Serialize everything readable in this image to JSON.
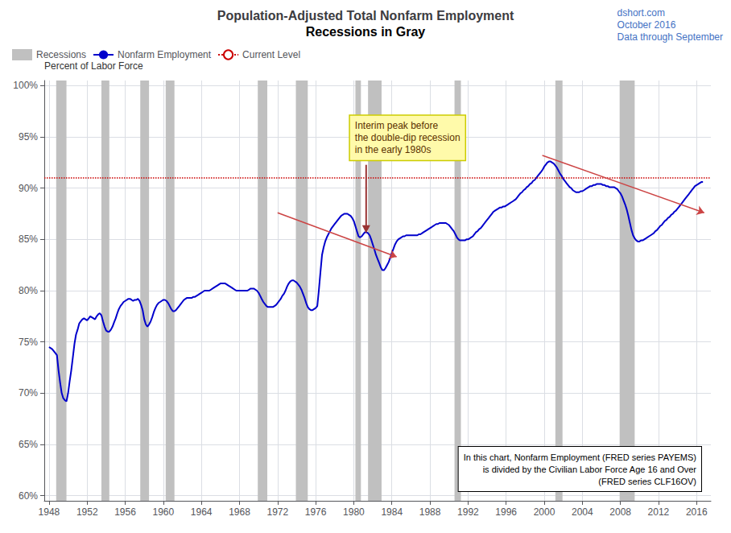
{
  "chart_data": {
    "type": "line",
    "title": "Population-Adjusted Total Nonfarm Employment",
    "subtitle": "Recessions in Gray",
    "ylabel": "Percent of Labor Force",
    "watermark": {
      "lines": [
        "dshort.com",
        "October 2016",
        "Data through September"
      ],
      "color": "#4472C4"
    },
    "background_color": "#FFFFFF",
    "grid": true,
    "legend": "upper left",
    "xlim": [
      1947.5,
      2017.5
    ],
    "xticks": [
      1948,
      1952,
      1956,
      1960,
      1964,
      1968,
      1972,
      1976,
      1980,
      1984,
      1988,
      1992,
      1996,
      2000,
      2004,
      2008,
      2012,
      2016
    ],
    "ylim": [
      0.595,
      1.005
    ],
    "yticks": [
      {
        "value": 0.6,
        "label": "60%"
      },
      {
        "value": 0.65,
        "label": "65%"
      },
      {
        "value": 0.7,
        "label": "70%"
      },
      {
        "value": 0.75,
        "label": "75%"
      },
      {
        "value": 0.8,
        "label": "80%"
      },
      {
        "value": 0.85,
        "label": "85%"
      },
      {
        "value": 0.9,
        "label": "90%"
      },
      {
        "value": 0.95,
        "label": "95%"
      },
      {
        "value": 1.0,
        "label": "100%"
      }
    ],
    "recessions": {
      "name": "Recessions",
      "color": "#C0C0C0",
      "bands": [
        [
          1948.75,
          1949.83
        ],
        [
          1953.5,
          1954.33
        ],
        [
          1957.58,
          1958.5
        ],
        [
          1960.25,
          1961.17
        ],
        [
          1969.92,
          1970.92
        ],
        [
          1973.92,
          1975.17
        ],
        [
          1980.17,
          1980.75
        ],
        [
          1981.5,
          1982.92
        ],
        [
          1990.58,
          1991.25
        ],
        [
          2001.17,
          2001.92
        ],
        [
          2007.92,
          2009.5
        ]
      ]
    },
    "current_level": {
      "name": "Current Level",
      "color": "#CC0000",
      "value": 0.906,
      "line_style": "dotted"
    },
    "trend_lines": {
      "color": "#CC4444",
      "lines": [
        [
          [
            1972.0,
            0.876
          ],
          [
            1984.5,
            0.833
          ]
        ],
        [
          [
            1999.8,
            0.932
          ],
          [
            2016.8,
            0.876
          ]
        ]
      ]
    },
    "annotations": [
      {
        "text": "Interim peak before\nthe double-dip recession\nin the early 1980s",
        "x": 1981.3,
        "y": 0.856,
        "color": "#993333"
      },
      {
        "text": "In this chart, Nonfarm Employment (FRED series PAYEMS)\nis divided by the Civilian Labor Force Age 16 and Over\n(FRED series CLF16OV)"
      }
    ],
    "x": [
      1948.0,
      1948.17,
      1948.33,
      1948.5,
      1948.67,
      1948.83,
      1949.0,
      1949.17,
      1949.33,
      1949.5,
      1949.67,
      1949.83,
      1950.0,
      1950.17,
      1950.33,
      1950.5,
      1950.67,
      1950.83,
      1951.0,
      1951.17,
      1951.33,
      1951.5,
      1951.67,
      1951.83,
      1952.0,
      1952.17,
      1952.33,
      1952.5,
      1952.67,
      1952.83,
      1953.0,
      1953.17,
      1953.33,
      1953.5,
      1953.67,
      1953.83,
      1954.0,
      1954.17,
      1954.33,
      1954.5,
      1954.67,
      1954.83,
      1955.0,
      1955.17,
      1955.33,
      1955.5,
      1955.67,
      1955.83,
      1956.0,
      1956.17,
      1956.33,
      1956.5,
      1956.67,
      1956.83,
      1957.0,
      1957.17,
      1957.33,
      1957.5,
      1957.67,
      1957.83,
      1958.0,
      1958.17,
      1958.33,
      1958.5,
      1958.67,
      1958.83,
      1959.0,
      1959.17,
      1959.33,
      1959.5,
      1959.67,
      1959.83,
      1960.0,
      1960.17,
      1960.33,
      1960.5,
      1960.67,
      1960.83,
      1961.0,
      1961.17,
      1961.33,
      1961.5,
      1961.67,
      1961.83,
      1962.0,
      1962.17,
      1962.33,
      1962.5,
      1962.67,
      1962.83,
      1963.0,
      1963.17,
      1963.33,
      1963.5,
      1963.67,
      1963.83,
      1964.0,
      1964.17,
      1964.33,
      1964.5,
      1964.67,
      1964.83,
      1965.0,
      1965.17,
      1965.33,
      1965.5,
      1965.67,
      1965.83,
      1966.0,
      1966.17,
      1966.33,
      1966.5,
      1966.67,
      1966.83,
      1967.0,
      1967.17,
      1967.33,
      1967.5,
      1967.67,
      1967.83,
      1968.0,
      1968.17,
      1968.33,
      1968.5,
      1968.67,
      1968.83,
      1969.0,
      1969.17,
      1969.33,
      1969.5,
      1969.67,
      1969.83,
      1970.0,
      1970.17,
      1970.33,
      1970.5,
      1970.67,
      1970.83,
      1971.0,
      1971.17,
      1971.33,
      1971.5,
      1971.67,
      1971.83,
      1972.0,
      1972.17,
      1972.33,
      1972.5,
      1972.67,
      1972.83,
      1973.0,
      1973.17,
      1973.33,
      1973.5,
      1973.67,
      1973.83,
      1974.0,
      1974.17,
      1974.33,
      1974.5,
      1974.67,
      1974.83,
      1975.0,
      1975.17,
      1975.33,
      1975.5,
      1975.67,
      1975.83,
      1976.0,
      1976.17,
      1976.33,
      1976.5,
      1976.67,
      1976.83,
      1977.0,
      1977.17,
      1977.33,
      1977.5,
      1977.67,
      1977.83,
      1978.0,
      1978.17,
      1978.33,
      1978.5,
      1978.67,
      1978.83,
      1979.0,
      1979.17,
      1979.33,
      1979.5,
      1979.67,
      1979.83,
      1980.0,
      1980.17,
      1980.33,
      1980.5,
      1980.67,
      1980.83,
      1981.0,
      1981.17,
      1981.33,
      1981.5,
      1981.67,
      1981.83,
      1982.0,
      1982.17,
      1982.33,
      1982.5,
      1982.67,
      1982.83,
      1983.0,
      1983.17,
      1983.33,
      1983.5,
      1983.67,
      1983.83,
      1984.0,
      1984.17,
      1984.33,
      1984.5,
      1984.67,
      1984.83,
      1985.0,
      1985.17,
      1985.33,
      1985.5,
      1985.67,
      1985.83,
      1986.0,
      1986.17,
      1986.33,
      1986.5,
      1986.67,
      1986.83,
      1987.0,
      1987.17,
      1987.33,
      1987.5,
      1987.67,
      1987.83,
      1988.0,
      1988.17,
      1988.33,
      1988.5,
      1988.67,
      1988.83,
      1989.0,
      1989.17,
      1989.33,
      1989.5,
      1989.67,
      1989.83,
      1990.0,
      1990.17,
      1990.33,
      1990.5,
      1990.67,
      1990.83,
      1991.0,
      1991.17,
      1991.33,
      1991.5,
      1991.67,
      1991.83,
      1992.0,
      1992.17,
      1992.33,
      1992.5,
      1992.67,
      1992.83,
      1993.0,
      1993.17,
      1993.33,
      1993.5,
      1993.67,
      1993.83,
      1994.0,
      1994.17,
      1994.33,
      1994.5,
      1994.67,
      1994.83,
      1995.0,
      1995.17,
      1995.33,
      1995.5,
      1995.67,
      1995.83,
      1996.0,
      1996.17,
      1996.33,
      1996.5,
      1996.67,
      1996.83,
      1997.0,
      1997.17,
      1997.33,
      1997.5,
      1997.67,
      1997.83,
      1998.0,
      1998.17,
      1998.33,
      1998.5,
      1998.67,
      1998.83,
      1999.0,
      1999.17,
      1999.33,
      1999.5,
      1999.67,
      1999.83,
      2000.0,
      2000.17,
      2000.33,
      2000.5,
      2000.67,
      2000.83,
      2001.0,
      2001.17,
      2001.33,
      2001.5,
      2001.67,
      2001.83,
      2002.0,
      2002.17,
      2002.33,
      2002.5,
      2002.67,
      2002.83,
      2003.0,
      2003.17,
      2003.33,
      2003.5,
      2003.67,
      2003.83,
      2004.0,
      2004.17,
      2004.33,
      2004.5,
      2004.67,
      2004.83,
      2005.0,
      2005.17,
      2005.33,
      2005.5,
      2005.67,
      2005.83,
      2006.0,
      2006.17,
      2006.33,
      2006.5,
      2006.67,
      2006.83,
      2007.0,
      2007.17,
      2007.33,
      2007.5,
      2007.67,
      2007.83,
      2008.0,
      2008.17,
      2008.33,
      2008.5,
      2008.67,
      2008.83,
      2009.0,
      2009.17,
      2009.33,
      2009.5,
      2009.67,
      2009.83,
      2010.0,
      2010.17,
      2010.33,
      2010.5,
      2010.67,
      2010.83,
      2011.0,
      2011.17,
      2011.33,
      2011.5,
      2011.67,
      2011.83,
      2012.0,
      2012.17,
      2012.33,
      2012.5,
      2012.67,
      2012.83,
      2013.0,
      2013.17,
      2013.33,
      2013.5,
      2013.67,
      2013.83,
      2014.0,
      2014.17,
      2014.33,
      2014.5,
      2014.67,
      2014.83,
      2015.0,
      2015.17,
      2015.33,
      2015.5,
      2015.67,
      2015.83,
      2016.0,
      2016.17,
      2016.33,
      2016.5,
      2016.67
    ],
    "series": [
      {
        "name": "Nonfarm Employment",
        "color": "#0000CC",
        "values": [
          0.745,
          0.744,
          0.743,
          0.741,
          0.739,
          0.737,
          0.722,
          0.71,
          0.7,
          0.695,
          0.693,
          0.692,
          0.7,
          0.712,
          0.722,
          0.735,
          0.748,
          0.757,
          0.762,
          0.768,
          0.77,
          0.772,
          0.773,
          0.772,
          0.771,
          0.773,
          0.775,
          0.774,
          0.773,
          0.772,
          0.775,
          0.777,
          0.778,
          0.776,
          0.77,
          0.765,
          0.761,
          0.76,
          0.76,
          0.762,
          0.765,
          0.769,
          0.773,
          0.778,
          0.782,
          0.785,
          0.787,
          0.789,
          0.79,
          0.791,
          0.792,
          0.792,
          0.791,
          0.79,
          0.791,
          0.791,
          0.792,
          0.79,
          0.786,
          0.781,
          0.772,
          0.767,
          0.765,
          0.767,
          0.77,
          0.774,
          0.779,
          0.783,
          0.786,
          0.788,
          0.789,
          0.79,
          0.791,
          0.791,
          0.79,
          0.788,
          0.785,
          0.782,
          0.78,
          0.78,
          0.781,
          0.783,
          0.785,
          0.787,
          0.789,
          0.791,
          0.792,
          0.793,
          0.793,
          0.793,
          0.793,
          0.794,
          0.794,
          0.795,
          0.796,
          0.797,
          0.798,
          0.799,
          0.8,
          0.8,
          0.8,
          0.8,
          0.801,
          0.802,
          0.803,
          0.804,
          0.805,
          0.806,
          0.807,
          0.807,
          0.807,
          0.807,
          0.806,
          0.805,
          0.804,
          0.803,
          0.802,
          0.801,
          0.8,
          0.8,
          0.8,
          0.8,
          0.8,
          0.8,
          0.8,
          0.8,
          0.801,
          0.802,
          0.802,
          0.802,
          0.801,
          0.8,
          0.798,
          0.795,
          0.792,
          0.789,
          0.787,
          0.785,
          0.784,
          0.784,
          0.784,
          0.784,
          0.785,
          0.786,
          0.788,
          0.79,
          0.792,
          0.795,
          0.797,
          0.8,
          0.804,
          0.807,
          0.809,
          0.81,
          0.81,
          0.809,
          0.808,
          0.806,
          0.804,
          0.801,
          0.797,
          0.793,
          0.788,
          0.784,
          0.782,
          0.781,
          0.781,
          0.782,
          0.783,
          0.785,
          0.8,
          0.818,
          0.835,
          0.842,
          0.848,
          0.852,
          0.855,
          0.858,
          0.861,
          0.863,
          0.865,
          0.867,
          0.869,
          0.871,
          0.873,
          0.874,
          0.875,
          0.875,
          0.875,
          0.874,
          0.873,
          0.871,
          0.868,
          0.863,
          0.858,
          0.853,
          0.852,
          0.853,
          0.855,
          0.857,
          0.857,
          0.856,
          0.854,
          0.85,
          0.845,
          0.84,
          0.835,
          0.831,
          0.827,
          0.823,
          0.82,
          0.82,
          0.822,
          0.825,
          0.828,
          0.832,
          0.837,
          0.841,
          0.845,
          0.848,
          0.85,
          0.851,
          0.852,
          0.853,
          0.853,
          0.854,
          0.854,
          0.854,
          0.854,
          0.854,
          0.854,
          0.854,
          0.854,
          0.855,
          0.855,
          0.856,
          0.857,
          0.858,
          0.859,
          0.86,
          0.861,
          0.862,
          0.863,
          0.864,
          0.865,
          0.865,
          0.866,
          0.866,
          0.866,
          0.866,
          0.866,
          0.865,
          0.864,
          0.862,
          0.86,
          0.858,
          0.855,
          0.852,
          0.85,
          0.849,
          0.849,
          0.849,
          0.849,
          0.85,
          0.85,
          0.851,
          0.852,
          0.853,
          0.855,
          0.857,
          0.858,
          0.86,
          0.861,
          0.863,
          0.865,
          0.867,
          0.869,
          0.871,
          0.873,
          0.875,
          0.877,
          0.878,
          0.879,
          0.88,
          0.881,
          0.881,
          0.882,
          0.882,
          0.883,
          0.884,
          0.885,
          0.886,
          0.887,
          0.888,
          0.889,
          0.891,
          0.893,
          0.895,
          0.896,
          0.898,
          0.899,
          0.901,
          0.902,
          0.904,
          0.905,
          0.907,
          0.908,
          0.91,
          0.912,
          0.914,
          0.916,
          0.918,
          0.921,
          0.923,
          0.925,
          0.926,
          0.926,
          0.925,
          0.924,
          0.922,
          0.92,
          0.917,
          0.914,
          0.912,
          0.909,
          0.907,
          0.905,
          0.903,
          0.901,
          0.9,
          0.898,
          0.897,
          0.896,
          0.896,
          0.896,
          0.897,
          0.897,
          0.898,
          0.899,
          0.9,
          0.901,
          0.902,
          0.902,
          0.903,
          0.903,
          0.904,
          0.904,
          0.904,
          0.904,
          0.903,
          0.903,
          0.902,
          0.902,
          0.901,
          0.901,
          0.901,
          0.901,
          0.9,
          0.899,
          0.897,
          0.895,
          0.892,
          0.888,
          0.884,
          0.879,
          0.873,
          0.866,
          0.859,
          0.854,
          0.851,
          0.849,
          0.848,
          0.848,
          0.849,
          0.849,
          0.85,
          0.851,
          0.852,
          0.853,
          0.854,
          0.855,
          0.856,
          0.858,
          0.859,
          0.861,
          0.863,
          0.864,
          0.866,
          0.868,
          0.869,
          0.871,
          0.872,
          0.874,
          0.875,
          0.877,
          0.878,
          0.88,
          0.882,
          0.884,
          0.886,
          0.888,
          0.89,
          0.892,
          0.894,
          0.896,
          0.898,
          0.9,
          0.902,
          0.903,
          0.904,
          0.905,
          0.906,
          0.906
        ]
      }
    ]
  }
}
